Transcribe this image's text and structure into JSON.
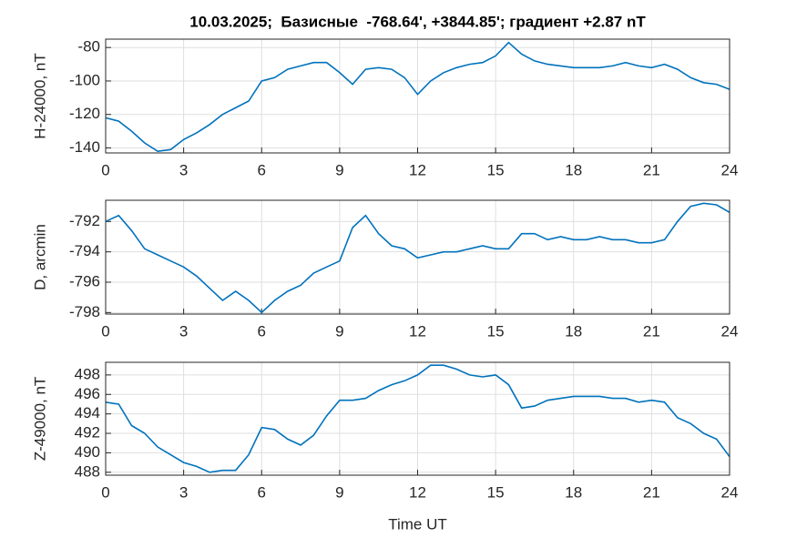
{
  "chart_data": [
    {
      "type": "line",
      "title": "10.03.2025;  Базисные  -768.64', +3844.85'; градиент +2.87 nT",
      "ylabel": "H-24000, nT",
      "color": "#0072bd",
      "grid": true,
      "x": [
        0,
        0.5,
        1,
        1.5,
        2,
        2.5,
        3,
        3.5,
        4,
        4.5,
        5,
        5.5,
        6,
        6.5,
        7,
        7.5,
        8,
        8.5,
        9,
        9.5,
        10,
        10.5,
        11,
        11.5,
        12,
        12.5,
        13,
        13.5,
        14,
        14.5,
        15,
        15.5,
        16,
        16.5,
        17,
        17.5,
        18,
        18.5,
        19,
        19.5,
        20,
        20.5,
        21,
        21.5,
        22,
        22.5,
        23,
        23.5,
        24
      ],
      "values": [
        -122,
        -124,
        -130,
        -137,
        -142,
        -141,
        -135,
        -131,
        -126,
        -120,
        -116,
        -112,
        -100,
        -98,
        -93,
        -91,
        -89,
        -89,
        -95,
        -102,
        -93,
        -92,
        -93,
        -98,
        -108,
        -100,
        -95,
        -92,
        -90,
        -89,
        -85,
        -77,
        -84,
        -88,
        -90,
        -91,
        -92,
        -92,
        -92,
        -91,
        -89,
        -91,
        -92,
        -90,
        -93,
        -98,
        -101,
        -102,
        -105
      ],
      "xlim": [
        0,
        24
      ],
      "xticks": [
        0,
        3,
        6,
        9,
        12,
        15,
        18,
        21,
        24
      ],
      "ylim": [
        -143,
        -75
      ],
      "yticks": [
        -140,
        -120,
        -100,
        -80
      ]
    },
    {
      "type": "line",
      "ylabel": "D, arcmin",
      "color": "#0072bd",
      "grid": true,
      "x": [
        0,
        0.5,
        1,
        1.5,
        2,
        2.5,
        3,
        3.5,
        4,
        4.5,
        5,
        5.5,
        6,
        6.5,
        7,
        7.5,
        8,
        8.5,
        9,
        9.5,
        10,
        10.5,
        11,
        11.5,
        12,
        12.5,
        13,
        13.5,
        14,
        14.5,
        15,
        15.5,
        16,
        16.5,
        17,
        17.5,
        18,
        18.5,
        19,
        19.5,
        20,
        20.5,
        21,
        21.5,
        22,
        22.5,
        23,
        23.5,
        24
      ],
      "values": [
        -792,
        -791.6,
        -792.6,
        -793.8,
        -794.2,
        -794.6,
        -795,
        -795.6,
        -796.4,
        -797.2,
        -796.6,
        -797.2,
        -798,
        -797.2,
        -796.6,
        -796.2,
        -795.4,
        -795,
        -794.6,
        -792.4,
        -791.6,
        -792.8,
        -793.6,
        -793.8,
        -794.4,
        -794.2,
        -794,
        -794,
        -793.8,
        -793.6,
        -793.8,
        -793.8,
        -792.8,
        -792.8,
        -793.2,
        -793,
        -793.2,
        -793.2,
        -793,
        -793.2,
        -793.2,
        -793.4,
        -793.4,
        -793.2,
        -792,
        -791,
        -790.8,
        -790.9,
        -791.4
      ],
      "xlim": [
        0,
        24
      ],
      "xticks": [
        0,
        3,
        6,
        9,
        12,
        15,
        18,
        21,
        24
      ],
      "ylim": [
        -798.1,
        -790.6
      ],
      "yticks": [
        -798,
        -796,
        -794,
        -792
      ]
    },
    {
      "type": "line",
      "ylabel": "Z-49000, nT",
      "xlabel": "Time UT",
      "color": "#0072bd",
      "grid": true,
      "x": [
        0,
        0.5,
        1,
        1.5,
        2,
        2.5,
        3,
        3.5,
        4,
        4.5,
        5,
        5.5,
        6,
        6.5,
        7,
        7.5,
        8,
        8.5,
        9,
        9.5,
        10,
        10.5,
        11,
        11.5,
        12,
        12.5,
        13,
        13.5,
        14,
        14.5,
        15,
        15.5,
        16,
        16.5,
        17,
        17.5,
        18,
        18.5,
        19,
        19.5,
        20,
        20.5,
        21,
        21.5,
        22,
        22.5,
        23,
        23.5,
        24
      ],
      "values": [
        495.2,
        495,
        492.8,
        492,
        490.6,
        489.8,
        489,
        488.6,
        488,
        488.2,
        488.2,
        489.8,
        492.6,
        492.4,
        491.4,
        490.8,
        491.8,
        493.8,
        495.4,
        495.4,
        495.6,
        496.4,
        497,
        497.4,
        498,
        499,
        499,
        498.6,
        498,
        497.8,
        498,
        497,
        494.6,
        494.8,
        495.4,
        495.6,
        495.8,
        495.8,
        495.8,
        495.6,
        495.6,
        495.2,
        495.4,
        495.2,
        493.6,
        493,
        492,
        491.4,
        489.6
      ],
      "xlim": [
        0,
        24
      ],
      "xticks": [
        0,
        3,
        6,
        9,
        12,
        15,
        18,
        21,
        24
      ],
      "ylim": [
        487.7,
        499.3
      ],
      "yticks": [
        488,
        490,
        492,
        494,
        496,
        498
      ]
    }
  ]
}
